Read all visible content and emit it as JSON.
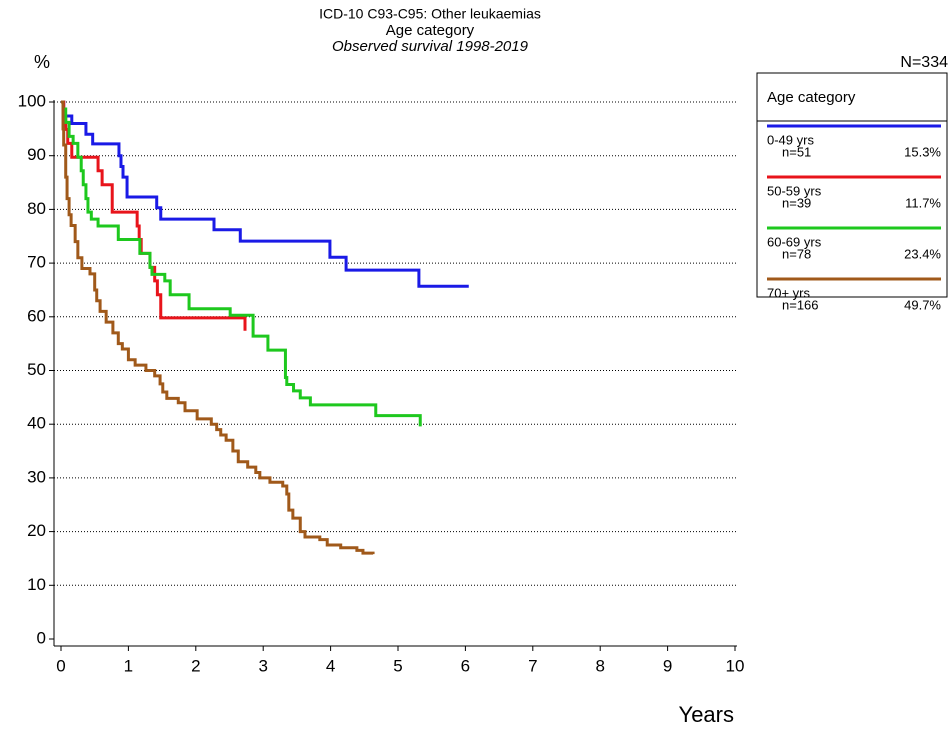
{
  "chart_data": {
    "type": "step",
    "title": "ICD-10 C93-C95: Other leukaemias",
    "subtitle": "Age category",
    "caption": "Observed survival 1998-2019",
    "y_label": "%",
    "x_label": "Years",
    "note": "N=334",
    "legend_title": "Age category",
    "grid": true,
    "xlim": [
      0,
      10
    ],
    "xticks": [
      0,
      1,
      2,
      3,
      4,
      5,
      6,
      7,
      8,
      9,
      10
    ],
    "ylim": [
      0,
      100
    ],
    "yticks": [
      0,
      10,
      20,
      30,
      40,
      50,
      60,
      70,
      80,
      90,
      100
    ],
    "series": [
      {
        "name": "0-49 yrs",
        "n_label": "n=51",
        "share_label": "15.3%",
        "color": "#1a1ae6",
        "x": [
          0,
          0.04,
          0.16,
          0.37,
          0.47,
          0.86,
          0.89,
          0.92,
          0.98,
          1.42,
          1.48,
          2.27,
          2.66,
          3.99,
          4.23,
          5.31,
          6.05
        ],
        "values": [
          100,
          97.4,
          96,
          94,
          92.2,
          90,
          88,
          86,
          82.3,
          80.3,
          78.2,
          76.2,
          74.1,
          71.1,
          68.7,
          65.7,
          65.7
        ]
      },
      {
        "name": "50-59 yrs",
        "n_label": "n=39",
        "share_label": "11.7%",
        "color": "#e8141b",
        "x": [
          0,
          0.04,
          0.07,
          0.1,
          0.16,
          0.55,
          0.61,
          0.76,
          1.13,
          1.16,
          1.19,
          1.32,
          1.39,
          1.43,
          1.48,
          2.73
        ],
        "values": [
          100,
          97.4,
          94.9,
          92.3,
          89.7,
          87.2,
          84.6,
          79.5,
          76.9,
          74.4,
          71.8,
          69.2,
          66.7,
          64.1,
          59.8,
          57.4
        ]
      },
      {
        "name": "60-69 yrs",
        "n_label": "n=78",
        "share_label": "23.4%",
        "color": "#1ec81e",
        "x": [
          0,
          0.03,
          0.07,
          0.12,
          0.18,
          0.25,
          0.3,
          0.33,
          0.37,
          0.4,
          0.45,
          0.55,
          0.85,
          1.17,
          1.32,
          1.35,
          1.54,
          1.62,
          1.9,
          2.51,
          2.85,
          3.07,
          3.33,
          3.35,
          3.45,
          3.55,
          3.7,
          4.67,
          5.33
        ],
        "values": [
          100,
          98.7,
          96.2,
          93.6,
          92.3,
          89.7,
          87.2,
          84.6,
          82,
          79.5,
          78.2,
          76.9,
          74.4,
          71.8,
          69.2,
          67.9,
          66.7,
          64.1,
          61.5,
          60.3,
          56.4,
          53.8,
          48.7,
          47.4,
          46.2,
          44.9,
          43.6,
          41.6,
          39.6
        ]
      },
      {
        "name": "70+ yrs",
        "n_label": "n=166",
        "share_label": "49.7%",
        "color": "#a0591a",
        "x": [
          0,
          0.03,
          0.04,
          0.07,
          0.09,
          0.12,
          0.15,
          0.21,
          0.25,
          0.31,
          0.43,
          0.5,
          0.53,
          0.58,
          0.67,
          0.77,
          0.85,
          0.91,
          1.0,
          1.1,
          1.26,
          1.39,
          1.47,
          1.51,
          1.57,
          1.74,
          1.84,
          2.02,
          2.23,
          2.31,
          2.37,
          2.45,
          2.55,
          2.63,
          2.77,
          2.89,
          2.95,
          3.1,
          3.29,
          3.35,
          3.38,
          3.44,
          3.55,
          3.62,
          3.84,
          3.95,
          4.15,
          4.39,
          4.48,
          4.63
        ],
        "values": [
          100,
          95,
          92,
          86,
          82,
          79,
          77,
          74,
          71,
          69,
          68,
          65,
          63,
          61,
          59,
          57,
          55,
          54,
          52,
          51,
          50,
          49,
          47.5,
          46,
          44.8,
          44,
          42.5,
          41,
          40,
          39,
          38,
          37,
          35,
          33,
          32,
          31,
          30,
          29.2,
          28.5,
          27,
          24,
          22.5,
          20,
          19,
          18.5,
          17.5,
          17,
          16.5,
          16,
          15.8
        ]
      }
    ]
  }
}
